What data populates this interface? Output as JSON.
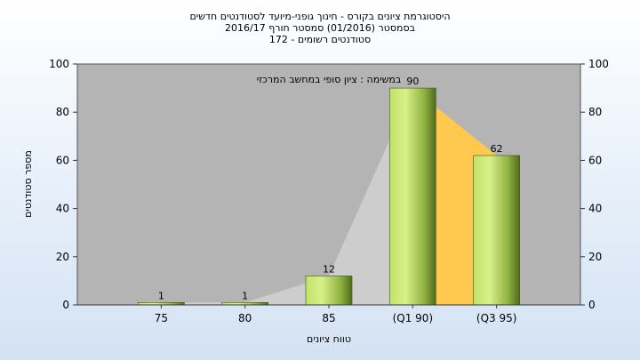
{
  "header": {
    "title_lines": [
      "היסטוגרמת ציונים בקורס - חינוך גופני-מיועד לסטודנטים חדשים",
      "בסמסטר  (01/2016)  סמסטר חורף 2016/17",
      "סטודנטים רשומים - 172"
    ]
  },
  "chart_data": {
    "type": "bar",
    "title": "היסטוגרמת ציונים בקורס - חינוך גופני-מיועד לסטודנטים חדשים",
    "subtitle": "במשימה : ציון סופי במחשב המרכזי",
    "categories": [
      "75",
      "80",
      "85",
      "(Q1 90)",
      "(Q3 95)"
    ],
    "series": [
      {
        "values": [
          1,
          1,
          12,
          90,
          62
        ]
      }
    ],
    "data_labels": [
      "1",
      "1",
      "12",
      "90",
      "62"
    ],
    "xlabel": "טווח ציונים",
    "ylabel": "מספר סטודנטים",
    "ylim": [
      0,
      100
    ],
    "yticks": [
      0,
      20,
      40,
      60,
      80,
      100
    ],
    "grid": false,
    "quartile_area": {
      "from_category": 3,
      "to_category": 4
    },
    "colors": {
      "plot_bg": "#b4b4b4",
      "bar_light": "#d8f08a",
      "bar_mid": "#9cc24a",
      "bar_dark": "#4f6a1e",
      "quartile_fill": "#ffc84f",
      "trend_fill": "#cfcfcf"
    }
  }
}
